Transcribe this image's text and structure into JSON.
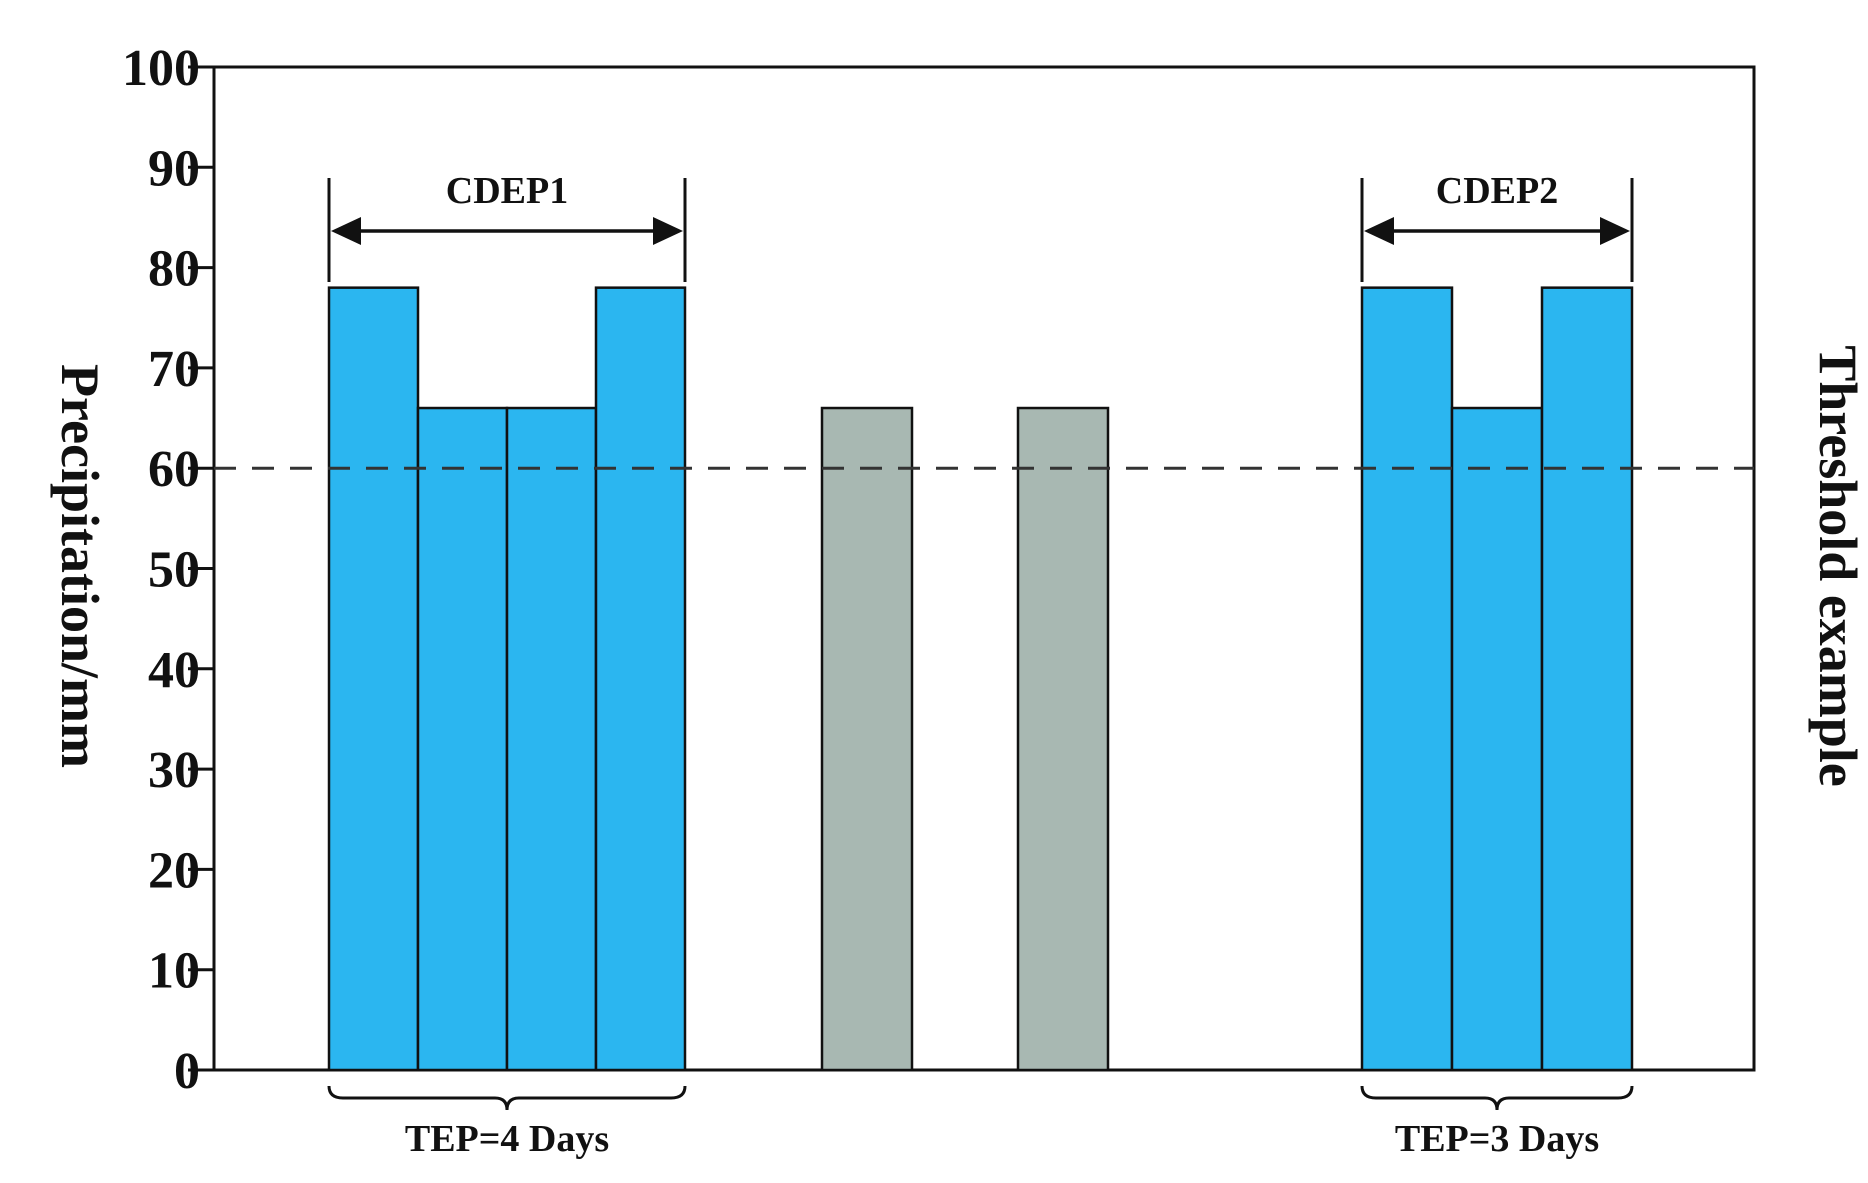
{
  "chart_data": {
    "type": "bar",
    "ylabel": "Precipitation/mm",
    "right_label": "Threshold example",
    "ylim": [
      0,
      100
    ],
    "yticks": [
      0,
      10,
      20,
      30,
      40,
      50,
      60,
      70,
      80,
      90,
      100
    ],
    "grid": false,
    "threshold": {
      "value": 60,
      "style": "dashed",
      "color": "#333333"
    },
    "colors": {
      "event": "#2bb6f0",
      "non_event": "#a8b8b2",
      "stroke": "#111111"
    },
    "bars": [
      {
        "value": 78,
        "group": "event"
      },
      {
        "value": 66,
        "group": "event"
      },
      {
        "value": 66,
        "group": "event"
      },
      {
        "value": 78,
        "group": "event"
      },
      {
        "value": 66,
        "group": "non_event"
      },
      {
        "value": 66,
        "group": "non_event"
      },
      {
        "value": 78,
        "group": "event"
      },
      {
        "value": 66,
        "group": "event"
      },
      {
        "value": 78,
        "group": "event"
      }
    ],
    "annotations": [
      {
        "kind": "arrow",
        "label": "CDEP1",
        "from_bar": 0,
        "to_bar": 3
      },
      {
        "kind": "arrow",
        "label": "CDEP2",
        "from_bar": 6,
        "to_bar": 8
      },
      {
        "kind": "brace",
        "label": "TEP=4 Days",
        "from_bar": 0,
        "to_bar": 3
      },
      {
        "kind": "brace",
        "label": "TEP=3 Days",
        "from_bar": 6,
        "to_bar": 8
      }
    ]
  }
}
